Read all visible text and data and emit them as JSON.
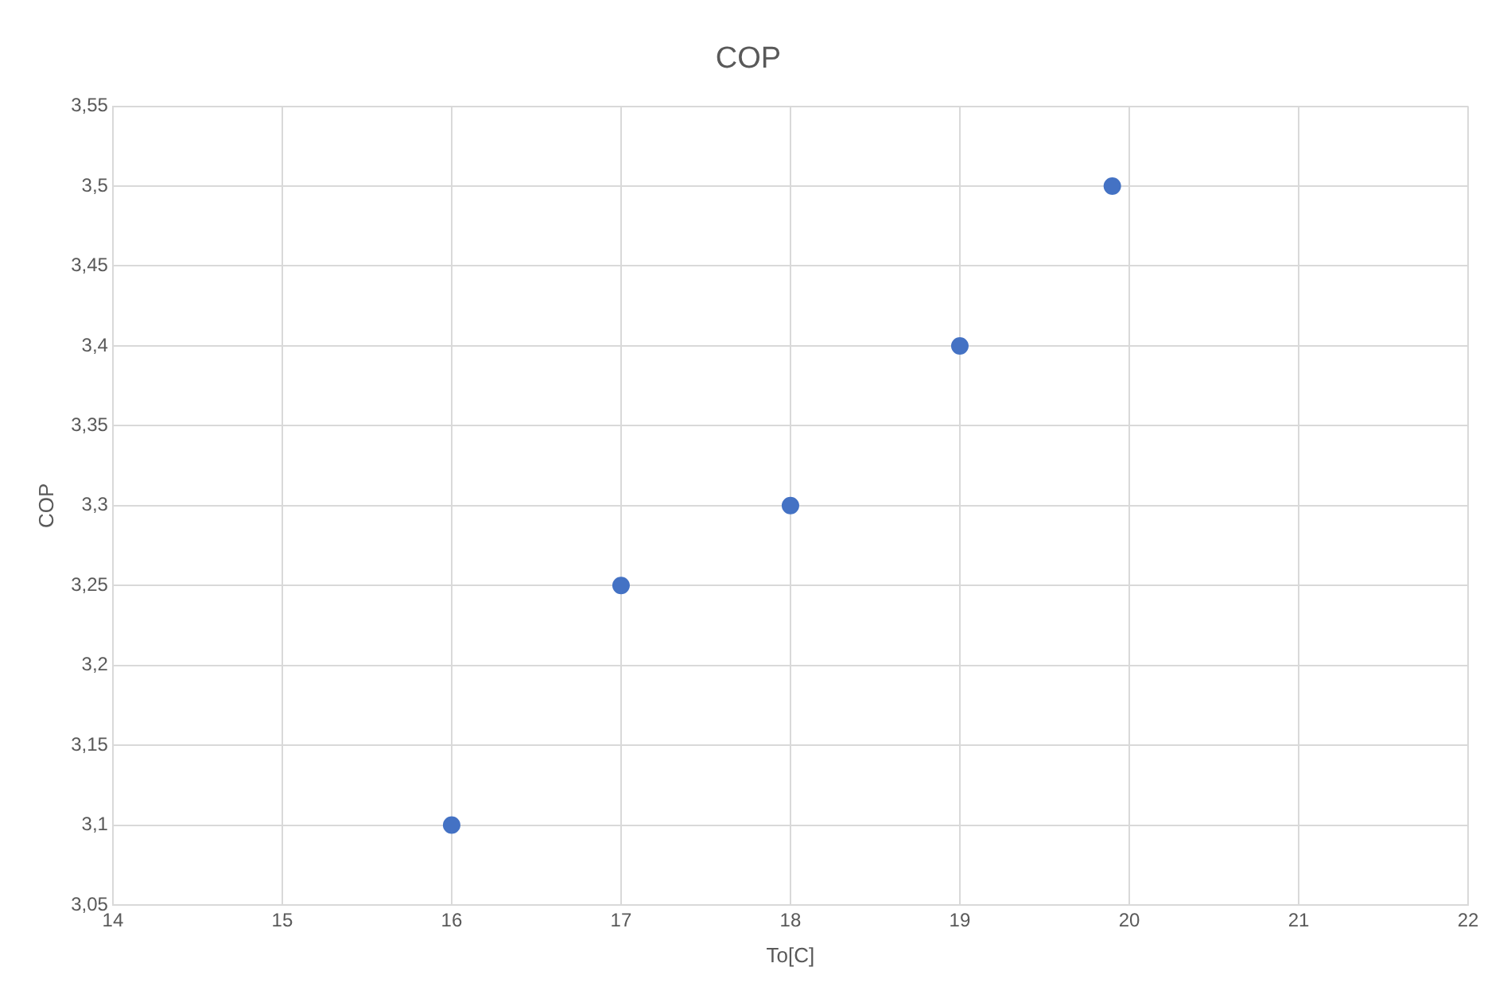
{
  "chart_data": {
    "type": "scatter",
    "title": "COP",
    "xlabel": "To[C]",
    "ylabel": "COP",
    "x": [
      16,
      17,
      18,
      19,
      19.9
    ],
    "series": [
      {
        "color": "#4472c4",
        "values": [
          3.1,
          3.25,
          3.3,
          3.4,
          3.5
        ]
      }
    ],
    "xlim": [
      14,
      22
    ],
    "xticks": [
      14,
      15,
      16,
      17,
      18,
      19,
      20,
      21,
      22
    ],
    "ylim": [
      3.05,
      3.55
    ],
    "yticks": [
      {
        "value": 3.05,
        "label": "3,05"
      },
      {
        "value": 3.1,
        "label": "3,1"
      },
      {
        "value": 3.15,
        "label": "3,15"
      },
      {
        "value": 3.2,
        "label": "3,2"
      },
      {
        "value": 3.25,
        "label": "3,25"
      },
      {
        "value": 3.3,
        "label": "3,3"
      },
      {
        "value": 3.35,
        "label": "3,35"
      },
      {
        "value": 3.4,
        "label": "3,4"
      },
      {
        "value": 3.45,
        "label": "3,45"
      },
      {
        "value": 3.5,
        "label": "3,5"
      },
      {
        "value": 3.55,
        "label": "3,55"
      }
    ],
    "grid": true,
    "legend": false,
    "marker": "circle"
  }
}
